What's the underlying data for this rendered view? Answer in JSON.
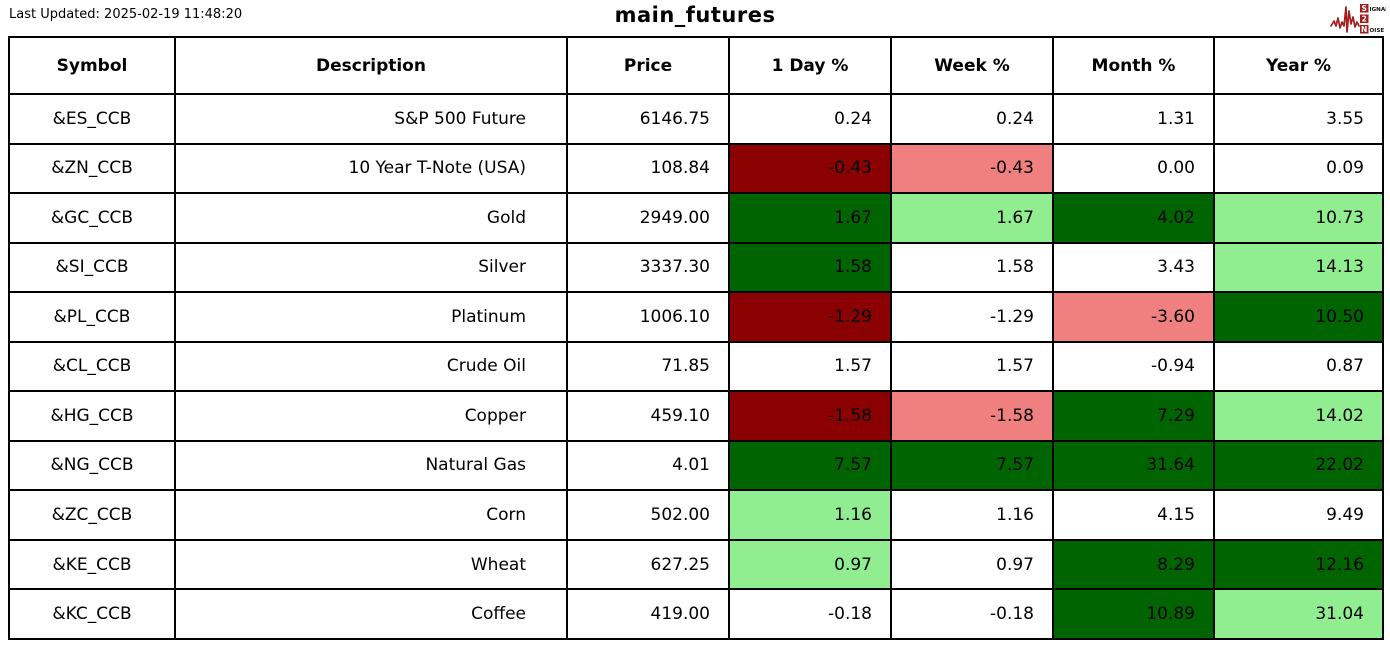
{
  "meta": {
    "last_updated": "Last Updated: 2025-02-19 11:48:20",
    "title": "main_futures"
  },
  "logo": {
    "accent_color": "#a51c1c",
    "line1_badge": "S",
    "line1_rest": "IGNAL",
    "line2_badge": "2",
    "line3_badge": "N",
    "line3_rest": "OISE"
  },
  "chart_data": {
    "type": "table",
    "title": "main_futures",
    "columns": [
      "Symbol",
      "Description",
      "Price",
      "1 Day %",
      "Week %",
      "Month %",
      "Year %"
    ],
    "color_legend": {
      "strong_up": "#006400",
      "mild_up": "#90EE90",
      "flat": "#FFFFFF",
      "mild_down": "#F08080",
      "strong_down": "#8B0000"
    },
    "rows": [
      {
        "symbol": "&ES_CCB",
        "description": "S&P 500 Future",
        "price": "6146.75",
        "pct": [
          {
            "value": "0.24",
            "tone": "flat"
          },
          {
            "value": "0.24",
            "tone": "flat"
          },
          {
            "value": "1.31",
            "tone": "flat"
          },
          {
            "value": "3.55",
            "tone": "flat"
          }
        ]
      },
      {
        "symbol": "&ZN_CCB",
        "description": "10 Year T-Note (USA)",
        "price": "108.84",
        "pct": [
          {
            "value": "-0.43",
            "tone": "strong_down"
          },
          {
            "value": "-0.43",
            "tone": "mild_down"
          },
          {
            "value": "0.00",
            "tone": "flat"
          },
          {
            "value": "0.09",
            "tone": "flat"
          }
        ]
      },
      {
        "symbol": "&GC_CCB",
        "description": "Gold",
        "price": "2949.00",
        "pct": [
          {
            "value": "1.67",
            "tone": "strong_up"
          },
          {
            "value": "1.67",
            "tone": "mild_up"
          },
          {
            "value": "4.02",
            "tone": "strong_up"
          },
          {
            "value": "10.73",
            "tone": "mild_up"
          }
        ]
      },
      {
        "symbol": "&SI_CCB",
        "description": "Silver",
        "price": "3337.30",
        "pct": [
          {
            "value": "1.58",
            "tone": "strong_up"
          },
          {
            "value": "1.58",
            "tone": "flat"
          },
          {
            "value": "3.43",
            "tone": "flat"
          },
          {
            "value": "14.13",
            "tone": "mild_up"
          }
        ]
      },
      {
        "symbol": "&PL_CCB",
        "description": "Platinum",
        "price": "1006.10",
        "pct": [
          {
            "value": "-1.29",
            "tone": "strong_down"
          },
          {
            "value": "-1.29",
            "tone": "flat"
          },
          {
            "value": "-3.60",
            "tone": "mild_down"
          },
          {
            "value": "10.50",
            "tone": "strong_up"
          }
        ]
      },
      {
        "symbol": "&CL_CCB",
        "description": "Crude Oil",
        "price": "71.85",
        "pct": [
          {
            "value": "1.57",
            "tone": "flat"
          },
          {
            "value": "1.57",
            "tone": "flat"
          },
          {
            "value": "-0.94",
            "tone": "flat"
          },
          {
            "value": "0.87",
            "tone": "flat"
          }
        ]
      },
      {
        "symbol": "&HG_CCB",
        "description": "Copper",
        "price": "459.10",
        "pct": [
          {
            "value": "-1.58",
            "tone": "strong_down"
          },
          {
            "value": "-1.58",
            "tone": "mild_down"
          },
          {
            "value": "7.29",
            "tone": "strong_up"
          },
          {
            "value": "14.02",
            "tone": "mild_up"
          }
        ]
      },
      {
        "symbol": "&NG_CCB",
        "description": "Natural Gas",
        "price": "4.01",
        "pct": [
          {
            "value": "7.57",
            "tone": "strong_up"
          },
          {
            "value": "7.57",
            "tone": "strong_up"
          },
          {
            "value": "31.64",
            "tone": "strong_up"
          },
          {
            "value": "22.02",
            "tone": "strong_up"
          }
        ]
      },
      {
        "symbol": "&ZC_CCB",
        "description": "Corn",
        "price": "502.00",
        "pct": [
          {
            "value": "1.16",
            "tone": "mild_up"
          },
          {
            "value": "1.16",
            "tone": "flat"
          },
          {
            "value": "4.15",
            "tone": "flat"
          },
          {
            "value": "9.49",
            "tone": "flat"
          }
        ]
      },
      {
        "symbol": "&KE_CCB",
        "description": "Wheat",
        "price": "627.25",
        "pct": [
          {
            "value": "0.97",
            "tone": "mild_up"
          },
          {
            "value": "0.97",
            "tone": "flat"
          },
          {
            "value": "8.29",
            "tone": "strong_up"
          },
          {
            "value": "12.16",
            "tone": "strong_up"
          }
        ]
      },
      {
        "symbol": "&KC_CCB",
        "description": "Coffee",
        "price": "419.00",
        "pct": [
          {
            "value": "-0.18",
            "tone": "flat"
          },
          {
            "value": "-0.18",
            "tone": "flat"
          },
          {
            "value": "10.89",
            "tone": "strong_up"
          },
          {
            "value": "31.04",
            "tone": "mild_up"
          }
        ]
      }
    ]
  }
}
